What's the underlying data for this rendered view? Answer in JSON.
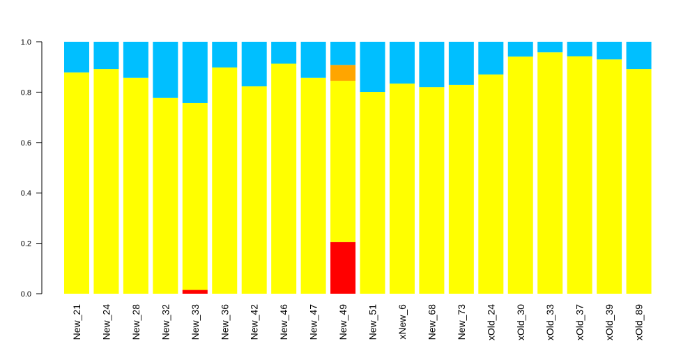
{
  "chart_data": {
    "type": "bar",
    "stacked": true,
    "categories": [
      "New_21",
      "New_24",
      "New_28",
      "New_32",
      "New_33",
      "New_36",
      "New_42",
      "New_46",
      "New_47",
      "New_49",
      "New_51",
      "xNew_6",
      "New_68",
      "New_73",
      "xOld_24",
      "xOld_30",
      "xOld_33",
      "xOld_37",
      "xOld_39",
      "xOld_89"
    ],
    "ylim": [
      0,
      1.0
    ],
    "yticks": [
      "0.0",
      "0.2",
      "0.4",
      "0.6",
      "0.8",
      "1.0"
    ],
    "grid": false,
    "legend": "none",
    "series": [
      {
        "color": "#ff0000",
        "values": [
          0,
          0,
          0,
          0,
          0.015,
          0,
          0,
          0,
          0,
          0.205,
          0,
          0,
          0,
          0,
          0,
          0,
          0,
          0,
          0,
          0
        ]
      },
      {
        "color": "#ffff00",
        "values": [
          0.878,
          0.892,
          0.857,
          0.777,
          0.742,
          0.898,
          0.823,
          0.913,
          0.857,
          0.64,
          0.801,
          0.834,
          0.82,
          0.829,
          0.87,
          0.941,
          0.958,
          0.942,
          0.93,
          0.892
        ]
      },
      {
        "color": "#ffa500",
        "values": [
          0,
          0,
          0,
          0,
          0,
          0,
          0,
          0,
          0,
          0.063,
          0,
          0,
          0,
          0,
          0,
          0,
          0,
          0,
          0,
          0
        ]
      },
      {
        "color": "#00bfff",
        "values": [
          0.122,
          0.108,
          0.143,
          0.223,
          0.243,
          0.102,
          0.177,
          0.087,
          0.143,
          0.092,
          0.199,
          0.166,
          0.18,
          0.171,
          0.13,
          0.059,
          0.042,
          0.058,
          0.07,
          0.108
        ]
      }
    ]
  }
}
